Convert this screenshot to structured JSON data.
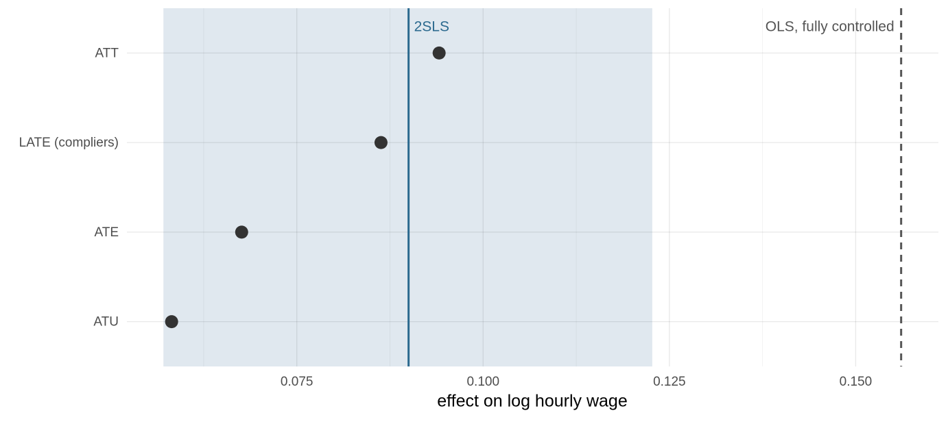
{
  "chart_data": {
    "type": "dot",
    "xlabel": "effect on log hourly wage",
    "categories": [
      "ATT",
      "LATE (compliers)",
      "ATE",
      "ATU"
    ],
    "values": [
      0.0941,
      0.0863,
      0.0676,
      0.0582
    ],
    "color": "#333333",
    "xlim": [
      0.0522,
      0.1611
    ],
    "xticks": [
      0.075,
      {
        "value": 0.1,
        "label": "0.100"
      },
      0.125,
      {
        "value": 0.15,
        "label": "0.150"
      }
    ],
    "minor_xticks": [
      0.0625,
      0.0875,
      0.1125,
      0.1375
    ],
    "grid": true,
    "band": {
      "from": 0.0571,
      "to": 0.1227,
      "color": "#e0e8ef"
    },
    "reference_lines": [
      {
        "label": "2SLS",
        "value": 0.09,
        "color": "#2c6a8f",
        "style": "solid",
        "label_side": "right"
      },
      {
        "label": "OLS, fully controlled",
        "value": 0.1561,
        "color": "#555555",
        "style": "dashed",
        "label_side": "left"
      }
    ]
  }
}
